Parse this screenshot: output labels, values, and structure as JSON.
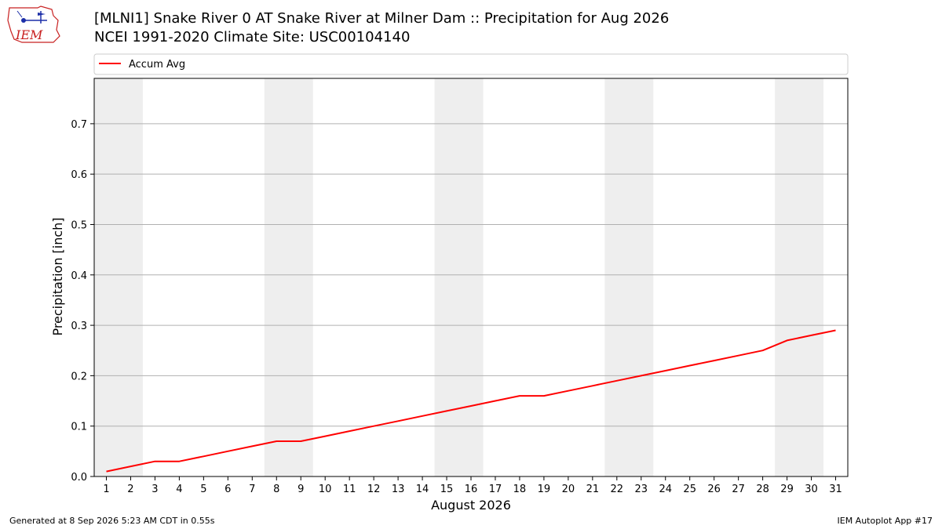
{
  "header": {
    "title_line1": "[MLNI1] Snake River 0 AT Snake River at Milner Dam :: Precipitation for Aug 2026",
    "title_line2": "NCEI 1991-2020 Climate Site: USC00104140"
  },
  "logo": {
    "text": "IEM",
    "icon": "iem-logo-icon"
  },
  "footer": {
    "left": "Generated at 8 Sep 2026 5:23 AM CDT in 0.55s",
    "right": "IEM Autoplot App #17"
  },
  "chart_data": {
    "type": "line",
    "title": "[MLNI1] Snake River 0 AT Snake River at Milner Dam :: Precipitation for Aug 2026",
    "subtitle": "NCEI 1991-2020 Climate Site: USC00104140",
    "xlabel": "August 2026",
    "ylabel": "Precipitation [inch]",
    "xlim": [
      0.5,
      31.5
    ],
    "ylim": [
      0,
      0.79
    ],
    "xticks": [
      1,
      2,
      3,
      4,
      5,
      6,
      7,
      8,
      9,
      10,
      11,
      12,
      13,
      14,
      15,
      16,
      17,
      18,
      19,
      20,
      21,
      22,
      23,
      24,
      25,
      26,
      27,
      28,
      29,
      30,
      31
    ],
    "yticks": [
      0.0,
      0.1,
      0.2,
      0.3,
      0.4,
      0.5,
      0.6,
      0.7
    ],
    "ytick_labels": [
      "0.0",
      "0.1",
      "0.2",
      "0.3",
      "0.4",
      "0.5",
      "0.6",
      "0.7"
    ],
    "grid": "horizontal",
    "legend": "top",
    "weekend_bands": [
      [
        1,
        2
      ],
      [
        8,
        9
      ],
      [
        15,
        16
      ],
      [
        22,
        23
      ],
      [
        29,
        30
      ]
    ],
    "band_color": "#eeeeee",
    "series": [
      {
        "name": "Accum Avg",
        "color": "#ff0000",
        "x": [
          1,
          2,
          3,
          4,
          5,
          6,
          7,
          8,
          9,
          10,
          11,
          12,
          13,
          14,
          15,
          16,
          17,
          18,
          19,
          20,
          21,
          22,
          23,
          24,
          25,
          26,
          27,
          28,
          29,
          30,
          31
        ],
        "values": [
          0.01,
          0.02,
          0.03,
          0.03,
          0.04,
          0.05,
          0.06,
          0.07,
          0.07,
          0.08,
          0.09,
          0.1,
          0.11,
          0.12,
          0.13,
          0.14,
          0.15,
          0.16,
          0.16,
          0.17,
          0.18,
          0.19,
          0.2,
          0.21,
          0.22,
          0.23,
          0.24,
          0.25,
          0.27,
          0.28,
          0.29
        ]
      }
    ]
  }
}
